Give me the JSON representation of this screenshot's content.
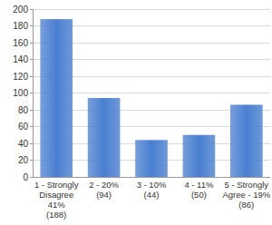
{
  "chart_data": {
    "type": "bar",
    "categories": [
      "1 - Strongly\nDisagree\n41%\n(188)",
      "2 - 20%\n(94)",
      "3 - 10%\n(44)",
      "4 - 11%\n(50)",
      "5 - Strongly\nAgree - 19%\n(86)"
    ],
    "values": [
      188,
      94,
      44,
      50,
      86
    ],
    "color": "#4a7fd0",
    "ylim": [
      0,
      200
    ],
    "yticks": [
      0,
      20,
      40,
      60,
      80,
      100,
      120,
      140,
      160,
      180,
      200
    ],
    "grid": true
  }
}
